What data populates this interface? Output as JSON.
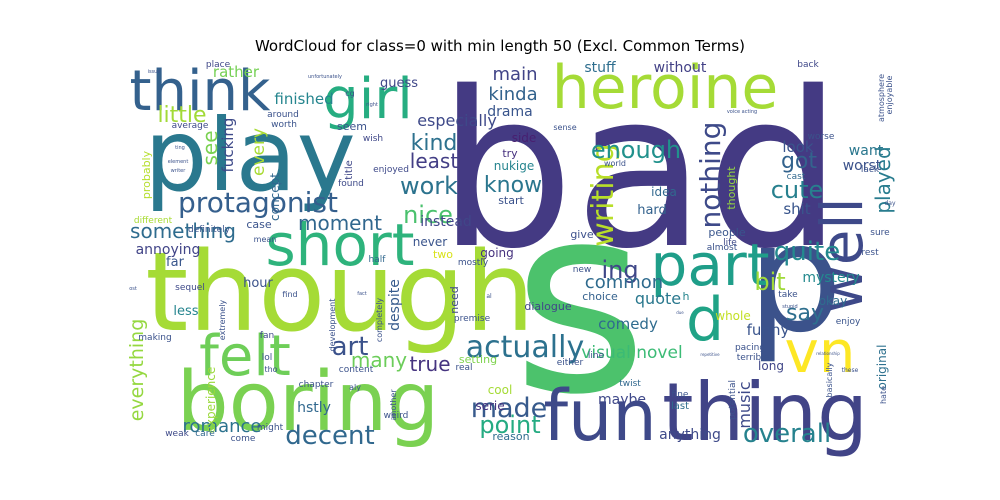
{
  "chart_data": {
    "type": "wordcloud",
    "title": "WordCloud for class=0 with min length 50 (Excl. Common Terms)",
    "grid": false,
    "legend": false,
    "palette": "viridis",
    "words": [
      {
        "text": "bad",
        "weight": 100,
        "color": "#443a83"
      },
      {
        "text": "s",
        "weight": 97,
        "color": "#4cc26c"
      },
      {
        "text": "though",
        "weight": 62,
        "color": "#a5db36"
      },
      {
        "text": "play",
        "weight": 58,
        "color": "#2a788e"
      },
      {
        "text": "boring",
        "weight": 46,
        "color": "#7ad151"
      },
      {
        "text": "p",
        "weight": 45,
        "color": "#3b528b"
      },
      {
        "text": "thing",
        "weight": 43,
        "color": "#414487"
      },
      {
        "text": "heroine",
        "weight": 40,
        "color": "#a5db36"
      },
      {
        "text": "short",
        "weight": 36,
        "color": "#2eb37c"
      },
      {
        "text": "part",
        "weight": 35,
        "color": "#1f9e89"
      },
      {
        "text": "think",
        "weight": 34,
        "color": "#34618d"
      },
      {
        "text": "fun",
        "weight": 34,
        "color": "#3e4989"
      },
      {
        "text": "felt",
        "weight": 32,
        "color": "#6ece58"
      },
      {
        "text": "girl",
        "weight": 32,
        "color": "#26ad81"
      },
      {
        "text": "vn",
        "weight": 32,
        "color": "#fde725"
      },
      {
        "text": "d",
        "weight": 32,
        "color": "#20a386"
      },
      {
        "text": "well",
        "weight": 30,
        "color": "#3e4989"
      },
      {
        "text": "actually",
        "weight": 22,
        "color": "#2c718e"
      },
      {
        "text": "protagonist",
        "weight": 22,
        "color": "#355f8d"
      },
      {
        "text": "decent",
        "weight": 20,
        "color": "#31688e"
      },
      {
        "text": "overall",
        "weight": 20,
        "color": "#26828e"
      },
      {
        "text": "writing",
        "weight": 19,
        "color": "#b8de29"
      },
      {
        "text": "nothing",
        "weight": 19,
        "color": "#3e4a89"
      },
      {
        "text": "made",
        "weight": 19,
        "color": "#375a8c"
      },
      {
        "text": "quite",
        "weight": 18,
        "color": "#23898e"
      },
      {
        "text": "work",
        "weight": 18,
        "color": "#2c738e"
      },
      {
        "text": "point",
        "weight": 18,
        "color": "#25ab82"
      },
      {
        "text": "art",
        "weight": 18,
        "color": "#3b528b"
      },
      {
        "text": "enough",
        "weight": 17,
        "color": "#21918c"
      },
      {
        "text": "nice",
        "weight": 17,
        "color": "#4ac16d"
      },
      {
        "text": "cute",
        "weight": 16,
        "color": "#27808e"
      },
      {
        "text": "know",
        "weight": 16,
        "color": "#2a768e"
      },
      {
        "text": "bit",
        "weight": 16,
        "color": "#a0da39"
      },
      {
        "text": "played",
        "weight": 15,
        "color": "#287c8e"
      },
      {
        "text": "little",
        "weight": 15,
        "color": "#a2da37"
      },
      {
        "text": "kind",
        "weight": 15,
        "color": "#2d718e"
      },
      {
        "text": "got",
        "weight": 15,
        "color": "#33638d"
      },
      {
        "text": "ing",
        "weight": 15,
        "color": "#3f4788"
      },
      {
        "text": "say",
        "weight": 15,
        "color": "#2e6f8e"
      },
      {
        "text": "moment",
        "weight": 14,
        "color": "#31678e"
      },
      {
        "text": "something",
        "weight": 14,
        "color": "#2f6c8e"
      },
      {
        "text": "least",
        "weight": 14,
        "color": "#433e85"
      },
      {
        "text": "see",
        "weight": 14,
        "color": "#7ad151"
      },
      {
        "text": "many",
        "weight": 14,
        "color": "#6ccd5a"
      },
      {
        "text": "true",
        "weight": 14,
        "color": "#463480"
      },
      {
        "text": "everything",
        "weight": 14,
        "color": "#95d840"
      },
      {
        "text": "romance",
        "weight": 13,
        "color": "#2c728e"
      },
      {
        "text": "main",
        "weight": 13,
        "color": "#414487"
      },
      {
        "text": "kinda",
        "weight": 13,
        "color": "#33638d"
      },
      {
        "text": "common",
        "weight": 13,
        "color": "#2f6b8e"
      },
      {
        "text": "music",
        "weight": 12,
        "color": "#3e4a89"
      },
      {
        "text": "visual novel",
        "weight": 12,
        "color": "#3bbb75"
      },
      {
        "text": "especially",
        "weight": 12,
        "color": "#3e4989"
      },
      {
        "text": "every",
        "weight": 12,
        "color": "#a8db34"
      },
      {
        "text": "quote",
        "weight": 12,
        "color": "#2a788e"
      },
      {
        "text": "look",
        "weight": 11,
        "color": "#3a548c"
      },
      {
        "text": "shit",
        "weight": 11,
        "color": "#39558c"
      },
      {
        "text": "funny",
        "weight": 11,
        "color": "#3a548c"
      },
      {
        "text": "comedy",
        "weight": 11,
        "color": "#2f6b8e"
      },
      {
        "text": "drama",
        "weight": 11,
        "color": "#39558c"
      },
      {
        "text": "finished",
        "weight": 11,
        "color": "#25858e"
      },
      {
        "text": "stuff",
        "weight": 10,
        "color": "#2e6e8e"
      },
      {
        "text": "without",
        "weight": 10,
        "color": "#424086"
      },
      {
        "text": "fucking",
        "weight": 10,
        "color": "#3e4a89"
      },
      {
        "text": "rather",
        "weight": 10,
        "color": "#75d054"
      },
      {
        "text": "want",
        "weight": 10,
        "color": "#2a778e"
      },
      {
        "text": "worst",
        "weight": 10,
        "color": "#3b528b"
      },
      {
        "text": "instead",
        "weight": 10,
        "color": "#404688"
      },
      {
        "text": "annoying",
        "weight": 10,
        "color": "#414487"
      },
      {
        "text": "hstly",
        "weight": 10,
        "color": "#31688e"
      },
      {
        "text": "maybe",
        "weight": 10,
        "color": "#3f4889"
      },
      {
        "text": "anything",
        "weight": 10,
        "color": "#3e4a89"
      },
      {
        "text": "despite",
        "weight": 10,
        "color": "#375b8d"
      },
      {
        "text": "mystery",
        "weight": 10,
        "color": "#23898e"
      },
      {
        "text": "experience",
        "weight": 9,
        "color": "#9bd93c"
      },
      {
        "text": "original",
        "weight": 9,
        "color": "#2d708e"
      },
      {
        "text": "okay",
        "weight": 9,
        "color": "#2f6c8e"
      },
      {
        "text": "hour",
        "weight": 9,
        "color": "#3b528b"
      },
      {
        "text": "far",
        "weight": 9,
        "color": "#39568c"
      },
      {
        "text": "concept",
        "weight": 9,
        "color": "#31678e"
      },
      {
        "text": "hard",
        "weight": 9,
        "color": "#33628d"
      },
      {
        "text": "idea",
        "weight": 9,
        "color": "#31688e"
      },
      {
        "text": "guess",
        "weight": 9,
        "color": "#3f4788"
      },
      {
        "text": "nukige",
        "weight": 9,
        "color": "#25848e"
      },
      {
        "text": "side",
        "weight": 9,
        "color": "#481f70"
      },
      {
        "text": "going",
        "weight": 9,
        "color": "#46327e"
      },
      {
        "text": "never",
        "weight": 9,
        "color": "#3a548c"
      },
      {
        "text": "less",
        "weight": 9,
        "color": "#25848e"
      },
      {
        "text": "long",
        "weight": 9,
        "color": "#404688"
      },
      {
        "text": "whole",
        "weight": 9,
        "color": "#c2df23"
      },
      {
        "text": "cool",
        "weight": 9,
        "color": "#a5db36"
      },
      {
        "text": "serie",
        "weight": 9,
        "color": "#46337f"
      },
      {
        "text": "probably",
        "weight": 8,
        "color": "#b5de2b"
      },
      {
        "text": "setting",
        "weight": 8,
        "color": "#7fd34e"
      },
      {
        "text": "people",
        "weight": 8,
        "color": "#39558c"
      },
      {
        "text": "choice",
        "weight": 8,
        "color": "#34618d"
      },
      {
        "text": "give",
        "weight": 8,
        "color": "#3c508b"
      },
      {
        "text": "seem",
        "weight": 8,
        "color": "#3b528b"
      },
      {
        "text": "start",
        "weight": 8,
        "color": "#3b528b"
      },
      {
        "text": "two",
        "weight": 8,
        "color": "#d8e219"
      },
      {
        "text": "case",
        "weight": 8,
        "color": "#3a538b"
      },
      {
        "text": "thought",
        "weight": 8,
        "color": "#95d840"
      },
      {
        "text": "try",
        "weight": 8,
        "color": "#46307e"
      },
      {
        "text": "reason",
        "weight": 8,
        "color": "#2f6c8e"
      },
      {
        "text": "dialogue",
        "weight": 8,
        "color": "#404688"
      },
      {
        "text": "last",
        "weight": 8,
        "color": "#2e6e8e"
      },
      {
        "text": "h",
        "weight": 8,
        "color": "#25858e"
      },
      {
        "text": "need",
        "weight": 8,
        "color": "#3f4889"
      },
      {
        "text": "title",
        "weight": 7,
        "color": "#3f4788"
      },
      {
        "text": "back",
        "weight": 7,
        "color": "#3f4788"
      },
      {
        "text": "place",
        "weight": 7,
        "color": "#3f4788"
      },
      {
        "text": "around",
        "weight": 7,
        "color": "#3b528b"
      },
      {
        "text": "worth",
        "weight": 7,
        "color": "#3a538b"
      },
      {
        "text": "average",
        "weight": 7,
        "color": "#3e4a89"
      },
      {
        "text": "sequel",
        "weight": 7,
        "color": "#3e4989"
      },
      {
        "text": "making",
        "weight": 7,
        "color": "#3b528b"
      },
      {
        "text": "different",
        "weight": 7,
        "color": "#a8db34"
      },
      {
        "text": "definitely",
        "weight": 7,
        "color": "#39558c"
      },
      {
        "text": "lol",
        "weight": 7,
        "color": "#3b528b"
      },
      {
        "text": "fan",
        "weight": 7,
        "color": "#3e4989"
      },
      {
        "text": "mostly",
        "weight": 7,
        "color": "#3b528b"
      },
      {
        "text": "half",
        "weight": 7,
        "color": "#31688e"
      },
      {
        "text": "enjoy",
        "weight": 7,
        "color": "#3a548c"
      },
      {
        "text": "cast",
        "weight": 7,
        "color": "#31688e"
      },
      {
        "text": "worse",
        "weight": 7,
        "color": "#3b528b"
      },
      {
        "text": "life",
        "weight": 7,
        "color": "#3e4a89"
      },
      {
        "text": "pacing",
        "weight": 7,
        "color": "#3b528b"
      },
      {
        "text": "fine",
        "weight": 7,
        "color": "#3a538b"
      },
      {
        "text": "twist",
        "weight": 7,
        "color": "#31688e"
      },
      {
        "text": "wish",
        "weight": 7,
        "color": "#3f4788"
      },
      {
        "text": "found",
        "weight": 7,
        "color": "#3e4a89"
      },
      {
        "text": "enjoyed",
        "weight": 7,
        "color": "#3e4989"
      },
      {
        "text": "lack",
        "weight": 7,
        "color": "#3b528b"
      },
      {
        "text": "weak",
        "weight": 7,
        "color": "#3e4a89"
      },
      {
        "text": "care",
        "weight": 7,
        "color": "#31688e"
      },
      {
        "text": "come",
        "weight": 7,
        "color": "#3b528b"
      },
      {
        "text": "might",
        "weight": 7,
        "color": "#3b528b"
      },
      {
        "text": "chapter",
        "weight": 7,
        "color": "#3b528b"
      },
      {
        "text": "content",
        "weight": 7,
        "color": "#3b528b"
      },
      {
        "text": "weird",
        "weight": 7,
        "color": "#3b528b"
      },
      {
        "text": "another",
        "weight": 7,
        "color": "#3b528b"
      },
      {
        "text": "terrible",
        "weight": 7,
        "color": "#3b528b"
      },
      {
        "text": "potential",
        "weight": 7,
        "color": "#3b528b"
      },
      {
        "text": "basically",
        "weight": 6,
        "color": "#3b528b"
      },
      {
        "text": "hate",
        "weight": 6,
        "color": "#3b528b"
      },
      {
        "text": "extremely",
        "weight": 6,
        "color": "#3b528b"
      },
      {
        "text": "development",
        "weight": 6,
        "color": "#3b528b"
      },
      {
        "text": "completely",
        "weight": 6,
        "color": "#3b528b"
      },
      {
        "text": "either",
        "weight": 6,
        "color": "#3b528b"
      },
      {
        "text": "line",
        "weight": 6,
        "color": "#3b528b"
      },
      {
        "text": "real",
        "weight": 6,
        "color": "#3b528b"
      },
      {
        "text": "premise",
        "weight": 6,
        "color": "#3b528b"
      },
      {
        "text": "new",
        "weight": 6,
        "color": "#3b528b"
      },
      {
        "text": "almost",
        "weight": 6,
        "color": "#3b528b"
      },
      {
        "text": "take",
        "weight": 6,
        "color": "#3b528b"
      },
      {
        "text": "rest",
        "weight": 6,
        "color": "#3b528b"
      },
      {
        "text": "sure",
        "weight": 6,
        "color": "#3b528b"
      },
      {
        "text": "atmosphere",
        "weight": 5,
        "color": "#3b528b"
      },
      {
        "text": "enjoyable",
        "weight": 5,
        "color": "#3b528b"
      },
      {
        "text": "world",
        "weight": 5,
        "color": "#3b528b"
      },
      {
        "text": "sense",
        "weight": 5,
        "color": "#3b528b"
      },
      {
        "text": "cg",
        "weight": 5,
        "color": "#3b528b"
      },
      {
        "text": "mean",
        "weight": 5,
        "color": "#3b528b"
      },
      {
        "text": "find",
        "weight": 5,
        "color": "#3b528b"
      },
      {
        "text": "aly",
        "weight": 5,
        "color": "#3b528b"
      },
      {
        "text": "tho",
        "weight": 5,
        "color": "#3b528b"
      },
      {
        "text": "stupid",
        "weight": 4,
        "color": "#3b528b"
      },
      {
        "text": "voice acting",
        "weight": 4,
        "color": "#3b528b"
      },
      {
        "text": "unfortunately",
        "weight": 4,
        "color": "#3b528b"
      },
      {
        "text": "right",
        "weight": 4,
        "color": "#3b528b"
      },
      {
        "text": "al",
        "weight": 4,
        "color": "#3b528b"
      },
      {
        "text": "day",
        "weight": 4,
        "color": "#3b528b"
      },
      {
        "text": "these",
        "weight": 4,
        "color": "#3b528b"
      },
      {
        "text": "element",
        "weight": 4,
        "color": "#3b528b"
      },
      {
        "text": "writer",
        "weight": 4,
        "color": "#3b528b"
      },
      {
        "text": "issue",
        "weight": 3,
        "color": "#3b528b"
      },
      {
        "text": "ting",
        "weight": 3,
        "color": "#3b528b"
      },
      {
        "text": "ost",
        "weight": 3,
        "color": "#3b528b"
      },
      {
        "text": "fact",
        "weight": 3,
        "color": "#3b528b"
      },
      {
        "text": "relationship",
        "weight": 3,
        "color": "#3b528b"
      },
      {
        "text": "repetitive",
        "weight": 3,
        "color": "#3b528b"
      },
      {
        "text": "due",
        "weight": 3,
        "color": "#3b528b"
      }
    ]
  }
}
